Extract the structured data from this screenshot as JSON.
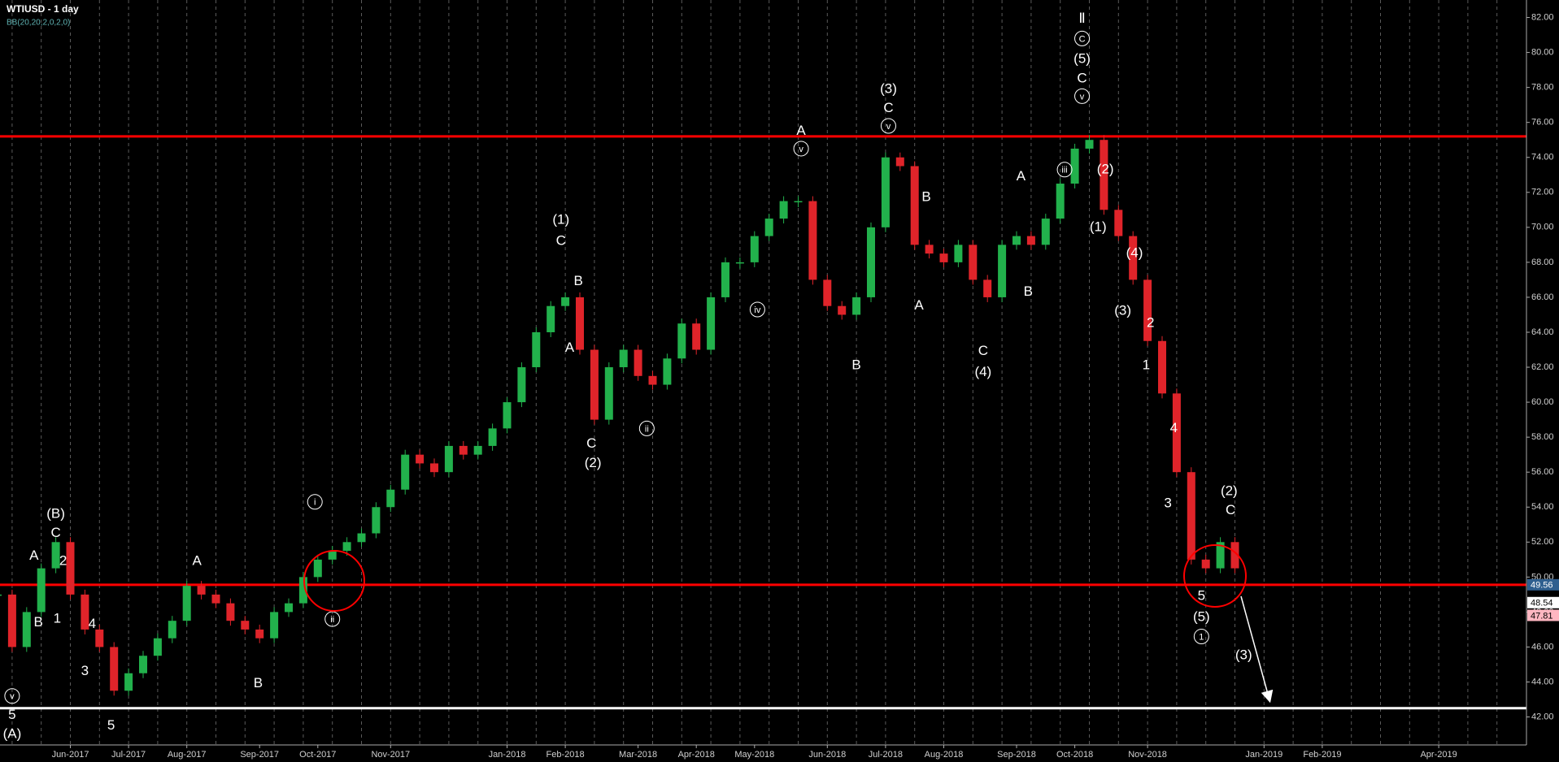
{
  "chart_data": {
    "type": "candlestick",
    "title": "WTIUSD - 1 day",
    "subtitle": "BB(20,20,2,0,2,0)",
    "categories": [
      null,
      null,
      null,
      null,
      null,
      "Jun-2017",
      null,
      null,
      null,
      "Jul-2017",
      null,
      null,
      null,
      "Aug-2017",
      null,
      null,
      null,
      null,
      "Sep-2017",
      null,
      null,
      null,
      "Oct-2017",
      null,
      null,
      null,
      null,
      "Nov-2017",
      null,
      null,
      null,
      null,
      null,
      null,
      null,
      "Jan-2018",
      null,
      null,
      null,
      "Feb-2018",
      null,
      null,
      null,
      null,
      "Mar-2018",
      null,
      null,
      null,
      "Apr-2018",
      null,
      null,
      null,
      "May-2018",
      null,
      null,
      null,
      null,
      "Jun-2018",
      null,
      null,
      null,
      "Jul-2018",
      null,
      null,
      null,
      "Aug-2018",
      null,
      null,
      null,
      null,
      "Sep-2018",
      null,
      null,
      null,
      "Oct-2018",
      null,
      null,
      null,
      null,
      "Nov-2018",
      null,
      null,
      null,
      null,
      null,
      null,
      null,
      "Jan-2019",
      null,
      null,
      null,
      "Feb-2019",
      null,
      null,
      null,
      null,
      null,
      null,
      null,
      "Apr-2019",
      null,
      null,
      null,
      null,
      null
    ],
    "series": [
      {
        "up_color": "#22b14c",
        "down_color": "#e0242a",
        "values": [
          49,
          46,
          48,
          50.5,
          52,
          49,
          47,
          46,
          43.5,
          44.5,
          45.5,
          46.5,
          47.5,
          49.5,
          49,
          48.5,
          47.5,
          47,
          46.5,
          48,
          48.5,
          50,
          51,
          51.5,
          52,
          52.5,
          54,
          55,
          57,
          56.5,
          56,
          57.5,
          57,
          57.5,
          58.5,
          60,
          62,
          64,
          65.5,
          66,
          63,
          59,
          62,
          63,
          61.5,
          61,
          62.5,
          64.5,
          63,
          66,
          68,
          68,
          69.5,
          70.5,
          71.5,
          71.5,
          67,
          65.5,
          65,
          66,
          70,
          74,
          73.5,
          69,
          68.5,
          68,
          69,
          67,
          66,
          69,
          69.5,
          69,
          70.5,
          72.5,
          74.5,
          75,
          71,
          69.5,
          67,
          63.5,
          60.5,
          56,
          51,
          50.5,
          52,
          50.5,
          null,
          null,
          null,
          null,
          null,
          null,
          null,
          null,
          null,
          null,
          null,
          null,
          null,
          null,
          null,
          null,
          null,
          null,
          null
        ]
      }
    ],
    "ylim": [
      40.4,
      83.0
    ],
    "yticks": [
      {
        "value": 42,
        "label": "42.00"
      },
      {
        "value": 44,
        "label": "44.00"
      },
      {
        "value": 46,
        "label": "46.00"
      },
      {
        "value": 48,
        "label": "48.00"
      },
      {
        "value": 50,
        "label": "50.00"
      },
      {
        "value": 52,
        "label": "52.00"
      },
      {
        "value": 54,
        "label": "54.00"
      },
      {
        "value": 56,
        "label": "56.00"
      },
      {
        "value": 58,
        "label": "58.00"
      },
      {
        "value": 60,
        "label": "60.00"
      },
      {
        "value": 62,
        "label": "62.00"
      },
      {
        "value": 64,
        "label": "64.00"
      },
      {
        "value": 66,
        "label": "66.00"
      },
      {
        "value": 68,
        "label": "68.00"
      },
      {
        "value": 70,
        "label": "70.00"
      },
      {
        "value": 72,
        "label": "72.00"
      },
      {
        "value": 74,
        "label": "74.00"
      },
      {
        "value": 76,
        "label": "76.00"
      },
      {
        "value": 78,
        "label": "78.00"
      },
      {
        "value": 80,
        "label": "80.00"
      },
      {
        "value": 82,
        "label": "82.00"
      }
    ],
    "levels": [
      {
        "value": 75.2,
        "color": "#ff0000"
      },
      {
        "value": 49.56,
        "color": "#ff0000"
      },
      {
        "value": 42.5,
        "color": "#ffffff"
      }
    ],
    "price_tags": [
      {
        "value": 49.56,
        "color": "#2f5f8f"
      },
      {
        "value": 48.54,
        "color": "#ffffff"
      },
      {
        "value": 47.81,
        "color": "#ffb6c1"
      }
    ],
    "annotations": [
      {
        "text": "v",
        "x": 1,
        "y": 43.2,
        "circled": true
      },
      {
        "text": "5",
        "x": 1,
        "y": 42.1
      },
      {
        "text": "(A)",
        "x": 1,
        "y": 41.0
      },
      {
        "text": "(B)",
        "x": 4,
        "y": 53.6
      },
      {
        "text": "C",
        "x": 4,
        "y": 52.5
      },
      {
        "text": "A",
        "x": 2.5,
        "y": 51.2
      },
      {
        "text": "2",
        "x": 4.5,
        "y": 50.9
      },
      {
        "text": "B",
        "x": 2.8,
        "y": 47.4
      },
      {
        "text": "1",
        "x": 4.1,
        "y": 47.6
      },
      {
        "text": "4",
        "x": 6.5,
        "y": 47.3
      },
      {
        "text": "3",
        "x": 6,
        "y": 44.6
      },
      {
        "text": "5",
        "x": 7.8,
        "y": 41.5
      },
      {
        "text": "A",
        "x": 13.7,
        "y": 50.9
      },
      {
        "text": "B",
        "x": 17.9,
        "y": 43.9
      },
      {
        "text": "i",
        "x": 21.8,
        "y": 54.3,
        "circled": true
      },
      {
        "text": "ii",
        "x": 23,
        "y": 47.6,
        "circled": true
      },
      {
        "text": "(1)",
        "x": 38.7,
        "y": 70.4
      },
      {
        "text": "C",
        "x": 38.7,
        "y": 69.2
      },
      {
        "text": "B",
        "x": 39.9,
        "y": 66.9
      },
      {
        "text": "A",
        "x": 39.3,
        "y": 63.1
      },
      {
        "text": "C",
        "x": 40.8,
        "y": 57.6
      },
      {
        "text": "(2)",
        "x": 40.9,
        "y": 56.5
      },
      {
        "text": "ii",
        "x": 44.6,
        "y": 58.5,
        "circled": true
      },
      {
        "text": "iv",
        "x": 52.2,
        "y": 65.3,
        "circled": true
      },
      {
        "text": "A",
        "x": 55.2,
        "y": 75.5
      },
      {
        "text": "v",
        "x": 55.2,
        "y": 74.5,
        "circled": true
      },
      {
        "text": "B",
        "x": 59,
        "y": 62.1
      },
      {
        "text": "(3)",
        "x": 61.2,
        "y": 77.9
      },
      {
        "text": "C",
        "x": 61.2,
        "y": 76.8
      },
      {
        "text": "v",
        "x": 61.2,
        "y": 75.8,
        "circled": true
      },
      {
        "text": "B",
        "x": 63.8,
        "y": 71.7
      },
      {
        "text": "A",
        "x": 63.3,
        "y": 65.5
      },
      {
        "text": "C",
        "x": 67.7,
        "y": 62.9
      },
      {
        "text": "(4)",
        "x": 67.7,
        "y": 61.7
      },
      {
        "text": "A",
        "x": 70.3,
        "y": 72.9
      },
      {
        "text": "B",
        "x": 70.8,
        "y": 66.3
      },
      {
        "text": "iii",
        "x": 73.3,
        "y": 73.3,
        "circled": true
      },
      {
        "text": "Ⅱ",
        "x": 74.5,
        "y": 81.9
      },
      {
        "text": "C",
        "x": 74.5,
        "y": 80.8,
        "circled": true
      },
      {
        "text": "(5)",
        "x": 74.5,
        "y": 79.6
      },
      {
        "text": "C",
        "x": 74.5,
        "y": 78.5
      },
      {
        "text": "v",
        "x": 74.5,
        "y": 77.5,
        "circled": true
      },
      {
        "text": "(2)",
        "x": 76.1,
        "y": 73.3
      },
      {
        "text": "(1)",
        "x": 75.6,
        "y": 70.0
      },
      {
        "text": "(4)",
        "x": 78.1,
        "y": 68.5
      },
      {
        "text": "(3)",
        "x": 77.3,
        "y": 65.2
      },
      {
        "text": "2",
        "x": 79.2,
        "y": 64.5
      },
      {
        "text": "1",
        "x": 78.9,
        "y": 62.1
      },
      {
        "text": "4",
        "x": 80.8,
        "y": 58.5
      },
      {
        "text": "3",
        "x": 80.4,
        "y": 54.2
      },
      {
        "text": "5",
        "x": 82.7,
        "y": 48.9
      },
      {
        "text": "(5)",
        "x": 82.7,
        "y": 47.7
      },
      {
        "text": "1",
        "x": 82.7,
        "y": 46.6,
        "circled": true
      },
      {
        "text": "(2)",
        "x": 84.6,
        "y": 54.9
      },
      {
        "text": "C",
        "x": 84.7,
        "y": 53.8
      },
      {
        "text": "(3)",
        "x": 85.6,
        "y": 45.5
      }
    ]
  }
}
